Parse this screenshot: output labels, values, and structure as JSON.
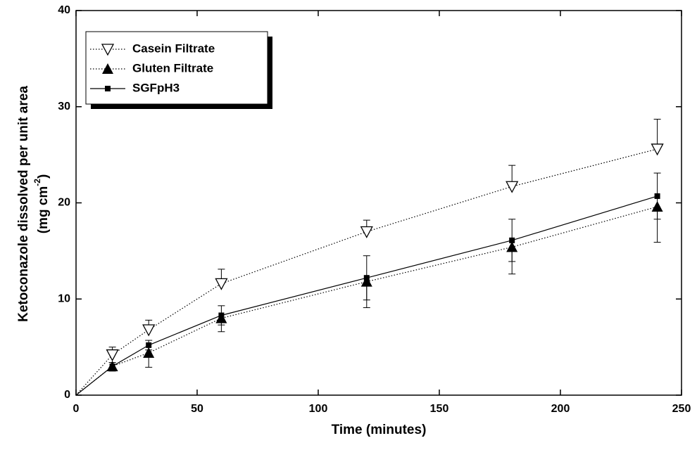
{
  "chart_data": {
    "type": "line",
    "xlabel": "Time (minutes)",
    "ylabel": "Ketoconazole dissolved per unit area",
    "ylabel_unit": {
      "text": "(mg cm",
      "superscript": "-2",
      "close": ")"
    },
    "xlim": [
      0,
      250
    ],
    "xticks": [
      0,
      50,
      100,
      150,
      200,
      250
    ],
    "ylim": [
      0,
      40
    ],
    "yticks": [
      0,
      10,
      20,
      30,
      40
    ],
    "legend": "upper left",
    "x": [
      0,
      15,
      30,
      60,
      120,
      180,
      240
    ],
    "series": [
      {
        "name": "Casein Filtrate",
        "color": "#000000",
        "line_style": "dotted",
        "marker": "open-down-triangle",
        "error_direction": "up",
        "values": [
          0,
          4.2,
          6.8,
          11.6,
          17.0,
          21.7,
          25.6
        ],
        "errors": [
          null,
          0.8,
          1.0,
          1.5,
          1.2,
          2.2,
          3.1
        ]
      },
      {
        "name": "Gluten Filtrate",
        "color": "#000000",
        "line_style": "dotted",
        "marker": "filled-up-triangle",
        "error_direction": "down",
        "values": [
          0,
          3.0,
          4.4,
          8.0,
          11.8,
          15.4,
          19.6
        ],
        "errors": [
          null,
          0.5,
          1.5,
          1.4,
          2.7,
          2.8,
          3.7
        ]
      },
      {
        "name": "SGFpH3",
        "color": "#000000",
        "line_style": "solid",
        "marker": "filled-square",
        "error_direction": "both",
        "values": [
          0,
          3.0,
          5.2,
          8.3,
          12.2,
          16.1,
          20.7
        ],
        "errors": [
          null,
          0.4,
          0.5,
          1.0,
          2.3,
          2.2,
          2.4
        ]
      }
    ]
  }
}
